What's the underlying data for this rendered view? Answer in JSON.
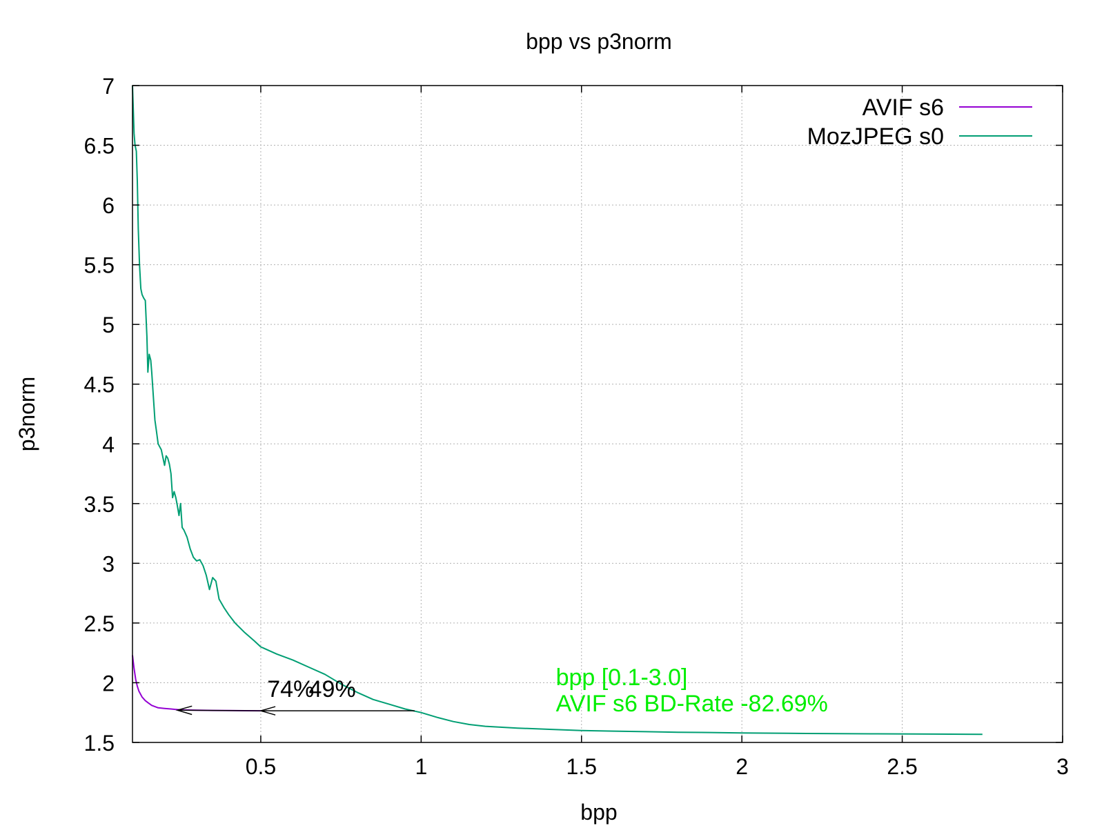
{
  "chart_data": {
    "type": "line",
    "title": "bpp vs p3norm",
    "xlabel": "bpp",
    "ylabel": "p3norm",
    "xlim": [
      0.1,
      3.0
    ],
    "ylim": [
      1.5,
      7.0
    ],
    "xticks": [
      0.5,
      1,
      1.5,
      2,
      2.5,
      3
    ],
    "yticks": [
      1.5,
      2,
      2.5,
      3,
      3.5,
      4,
      4.5,
      5,
      5.5,
      6,
      6.5,
      7
    ],
    "grid": true,
    "legend_position": "top-right",
    "series": [
      {
        "name": "AVIF s6",
        "color": "#9400d3",
        "points": [
          [
            0.1,
            2.23
          ],
          [
            0.105,
            2.12
          ],
          [
            0.11,
            2.03
          ],
          [
            0.115,
            1.97
          ],
          [
            0.12,
            1.93
          ],
          [
            0.13,
            1.88
          ],
          [
            0.14,
            1.85
          ],
          [
            0.15,
            1.83
          ],
          [
            0.16,
            1.81
          ],
          [
            0.18,
            1.79
          ],
          [
            0.2,
            1.785
          ],
          [
            0.22,
            1.78
          ],
          [
            0.24,
            1.775
          ],
          [
            0.26,
            1.772
          ],
          [
            0.3,
            1.77
          ],
          [
            0.35,
            1.768
          ],
          [
            0.4,
            1.767
          ],
          [
            0.45,
            1.766
          ],
          [
            0.5,
            1.765
          ]
        ]
      },
      {
        "name": "MozJPEG s0",
        "color": "#009e73",
        "points": [
          [
            0.1,
            7.0
          ],
          [
            0.102,
            6.85
          ],
          [
            0.105,
            6.6
          ],
          [
            0.108,
            6.5
          ],
          [
            0.112,
            6.45
          ],
          [
            0.115,
            6.2
          ],
          [
            0.118,
            5.8
          ],
          [
            0.122,
            5.5
          ],
          [
            0.126,
            5.3
          ],
          [
            0.13,
            5.25
          ],
          [
            0.135,
            5.22
          ],
          [
            0.14,
            5.2
          ],
          [
            0.145,
            4.9
          ],
          [
            0.148,
            4.6
          ],
          [
            0.152,
            4.75
          ],
          [
            0.157,
            4.7
          ],
          [
            0.16,
            4.6
          ],
          [
            0.165,
            4.4
          ],
          [
            0.17,
            4.2
          ],
          [
            0.175,
            4.1
          ],
          [
            0.18,
            4.0
          ],
          [
            0.19,
            3.95
          ],
          [
            0.2,
            3.82
          ],
          [
            0.205,
            3.9
          ],
          [
            0.21,
            3.88
          ],
          [
            0.215,
            3.83
          ],
          [
            0.22,
            3.75
          ],
          [
            0.225,
            3.55
          ],
          [
            0.23,
            3.6
          ],
          [
            0.235,
            3.55
          ],
          [
            0.24,
            3.48
          ],
          [
            0.245,
            3.4
          ],
          [
            0.25,
            3.5
          ],
          [
            0.255,
            3.3
          ],
          [
            0.26,
            3.28
          ],
          [
            0.27,
            3.22
          ],
          [
            0.28,
            3.12
          ],
          [
            0.29,
            3.05
          ],
          [
            0.3,
            3.02
          ],
          [
            0.31,
            3.03
          ],
          [
            0.32,
            2.98
          ],
          [
            0.33,
            2.9
          ],
          [
            0.34,
            2.78
          ],
          [
            0.35,
            2.88
          ],
          [
            0.36,
            2.85
          ],
          [
            0.37,
            2.7
          ],
          [
            0.385,
            2.63
          ],
          [
            0.4,
            2.57
          ],
          [
            0.42,
            2.5
          ],
          [
            0.45,
            2.42
          ],
          [
            0.48,
            2.35
          ],
          [
            0.5,
            2.3
          ],
          [
            0.55,
            2.24
          ],
          [
            0.6,
            2.19
          ],
          [
            0.65,
            2.13
          ],
          [
            0.7,
            2.07
          ],
          [
            0.75,
            1.99
          ],
          [
            0.8,
            1.92
          ],
          [
            0.85,
            1.86
          ],
          [
            0.9,
            1.82
          ],
          [
            0.95,
            1.78
          ],
          [
            1.0,
            1.75
          ],
          [
            1.05,
            1.71
          ],
          [
            1.1,
            1.675
          ],
          [
            1.15,
            1.65
          ],
          [
            1.2,
            1.635
          ],
          [
            1.3,
            1.62
          ],
          [
            1.4,
            1.61
          ],
          [
            1.5,
            1.6
          ],
          [
            1.6,
            1.595
          ],
          [
            1.7,
            1.59
          ],
          [
            1.8,
            1.585
          ],
          [
            1.9,
            1.583
          ],
          [
            2.0,
            1.58
          ],
          [
            2.2,
            1.575
          ],
          [
            2.4,
            1.572
          ],
          [
            2.6,
            1.57
          ],
          [
            2.75,
            1.568
          ]
        ]
      }
    ],
    "annotations": [
      {
        "text": "74%",
        "x": 0.52,
        "y": 1.88
      },
      {
        "text": "49%",
        "x": 0.65,
        "y": 1.88
      }
    ],
    "arrows": [
      {
        "from": [
          0.5,
          1.765
        ],
        "to": [
          0.24,
          1.77
        ]
      },
      {
        "from": [
          0.98,
          1.765
        ],
        "to": [
          0.5,
          1.765
        ]
      }
    ],
    "bd_rate": {
      "lines": [
        "bpp [0.1-3.0]",
        "AVIF s6 BD-Rate -82.69%"
      ],
      "x": 1.42,
      "y": [
        1.98,
        1.76
      ],
      "color": "#00ee00"
    }
  }
}
